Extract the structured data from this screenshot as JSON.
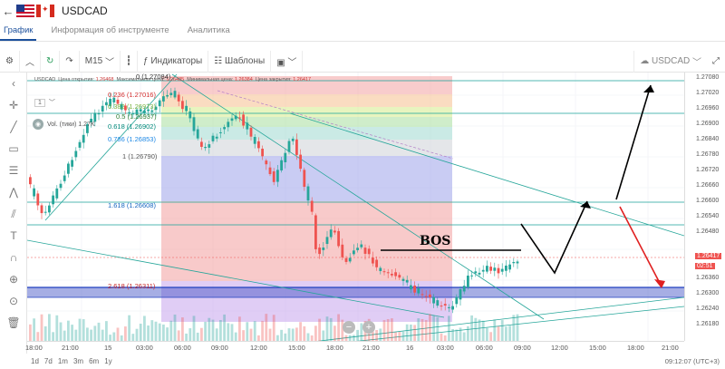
{
  "header": {
    "symbol": "USDCAD",
    "back_icon": "arrow-left-icon"
  },
  "tabs": [
    {
      "label": "График",
      "active": true
    },
    {
      "label": "Информация об инструменте",
      "active": false
    },
    {
      "label": "Аналитика",
      "active": false
    }
  ],
  "toolbar": {
    "timeframe": "M15",
    "indicators": "Индикаторы",
    "templates": "Шаблоны",
    "symbol_select": "USDCAD"
  },
  "ohlc": {
    "symbol": "USDCAD",
    "open_label": "Цена открытия:",
    "open": "1.26468",
    "high_label": "Максимальная цена:",
    "high": "1.26485",
    "low_label": "Минимальная цена:",
    "low": "1.26384",
    "close_label": "Цена закрытия:",
    "close": "1.26417"
  },
  "legend": {
    "value": "1",
    "volume_label": "Vol. (тики)",
    "volume_value": "1.27K"
  },
  "fib_levels": [
    {
      "label": "0 (1.27084)",
      "color": "#333333"
    },
    {
      "label": "0.236 (1.27016)",
      "color": "#d32f2f"
    },
    {
      "label": "0.382 (1.26973)",
      "color": "#7cb342"
    },
    {
      "label": "0.5 (1.26937)",
      "color": "#2e7d32"
    },
    {
      "label": "0.618 (1.26902)",
      "color": "#00897b"
    },
    {
      "label": "0.786 (1.26853)",
      "color": "#1e88e5"
    },
    {
      "label": "1 (1.26790)",
      "color": "#555555"
    },
    {
      "label": "1.618 (1.26608)",
      "color": "#1565c0"
    },
    {
      "label": "2.618 (1.26311)",
      "color": "#c62828"
    }
  ],
  "annotation": "BOS",
  "price_axis": [
    "1.27080",
    "1.27020",
    "1.26960",
    "1.26900",
    "1.26840",
    "1.26780",
    "1.26720",
    "1.26660",
    "1.26600",
    "1.26540",
    "1.26480",
    "1.26417",
    "1.26360",
    "1.26300",
    "1.26240",
    "1.26180"
  ],
  "current_price": "1.26417",
  "countdown": "02:51",
  "time_axis": [
    "18:00",
    "21:00",
    "15",
    "03:00",
    "06:00",
    "09:00",
    "12:00",
    "15:00",
    "18:00",
    "21:00",
    "16",
    "03:00",
    "06:00",
    "09:00",
    "12:00",
    "15:00",
    "18:00",
    "21:00"
  ],
  "periods": [
    "1d",
    "7d",
    "1m",
    "3m",
    "6m",
    "1y"
  ],
  "clock": "09:12:07 (UTC+3)",
  "colors": {
    "up": "#26a69a",
    "down": "#ef5350",
    "accent": "#1b4f9c"
  }
}
